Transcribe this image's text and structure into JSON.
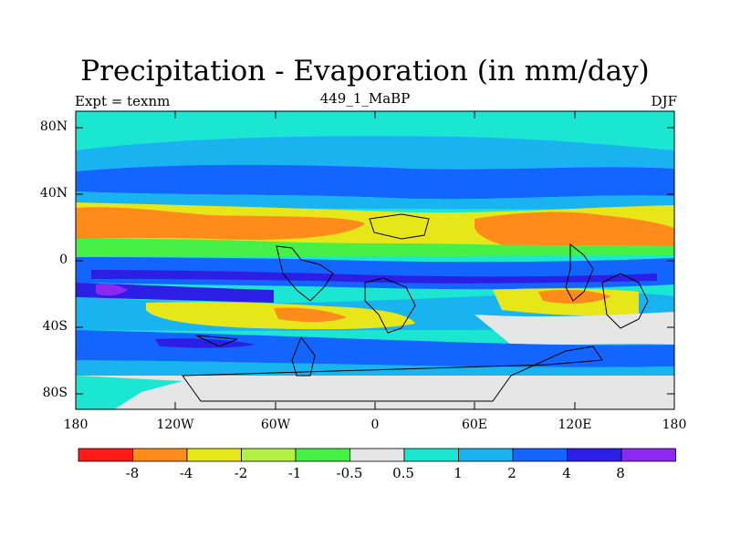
{
  "title": "Precipitation - Evaporation (in mm/day)",
  "subtitle": "449_1_MaBP",
  "left_label": "Expt = texnm",
  "right_label": "DJF",
  "y_ticks": [
    "80N",
    "40N",
    "0",
    "40S",
    "80S"
  ],
  "x_ticks": [
    "180",
    "120W",
    "60W",
    "0",
    "60E",
    "120E",
    "180"
  ],
  "colorbar": {
    "colors": [
      "#ff1a1a",
      "#ff8c1a",
      "#e6e619",
      "#b3f046",
      "#46f046",
      "#e6e6e6",
      "#1ae6d2",
      "#19b4f0",
      "#1464ff",
      "#2d1ee6",
      "#8c28f0"
    ],
    "labels": [
      "-8",
      "-4",
      "-2",
      "-1",
      "-0.5",
      "0.5",
      "1",
      "2",
      "4",
      "8"
    ]
  }
}
